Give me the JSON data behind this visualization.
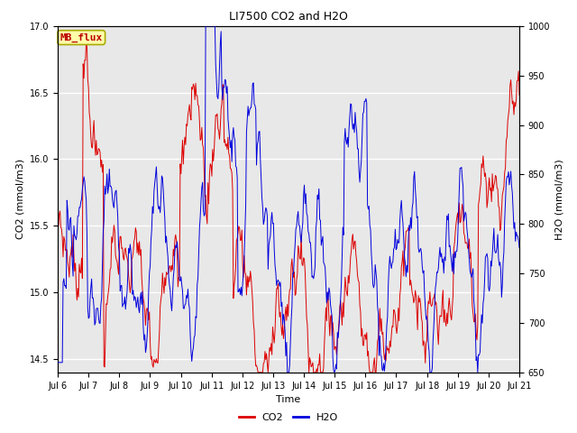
{
  "title": "LI7500 CO2 and H2O",
  "xlabel": "Time",
  "ylabel_left": "CO2 (mmol/m3)",
  "ylabel_right": "H2O (mmol/m3)",
  "co2_ylim": [
    14.4,
    17.0
  ],
  "h2o_ylim": [
    650,
    1000
  ],
  "co2_color": "#dd0000",
  "h2o_color": "#0000dd",
  "legend_labels": [
    "CO2",
    "H2O"
  ],
  "annotation_text": "MB_flux",
  "annotation_facecolor": "#ffffaa",
  "annotation_edgecolor": "#aaaa00",
  "annotation_textcolor": "#bb0000",
  "background_color": "#ffffff",
  "plot_bg_color": "#e8e8e8",
  "grid_color": "#ffffff",
  "x_tick_labels": [
    "Jul 6",
    "Jul 7",
    "Jul 8",
    "Jul 9",
    "Jul 10",
    "Jul 11",
    "Jul 12",
    "Jul 13",
    "Jul 14",
    "Jul 15",
    "Jul 16",
    "Jul 17",
    "Jul 18",
    "Jul 19",
    "Jul 20",
    "Jul 21"
  ],
  "title_fontsize": 9,
  "label_fontsize": 8,
  "tick_fontsize": 7,
  "legend_fontsize": 8,
  "n_points": 600
}
